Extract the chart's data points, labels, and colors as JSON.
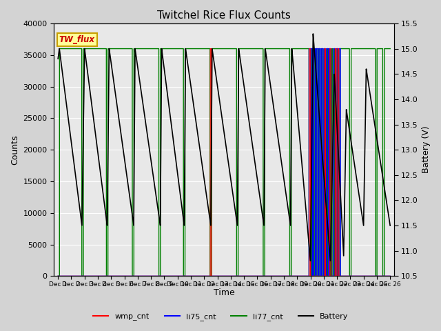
{
  "title": "Twitchel Rice Flux Counts",
  "xlabel": "Time",
  "ylabel_left": "Counts",
  "ylabel_right": "Battery (V)",
  "ylim_left": [
    0,
    40000
  ],
  "ylim_right": [
    10.5,
    15.5
  ],
  "yticks_left": [
    0,
    5000,
    10000,
    15000,
    20000,
    25000,
    30000,
    35000,
    40000
  ],
  "yticks_right": [
    10.5,
    11.0,
    11.5,
    12.0,
    12.5,
    13.0,
    13.5,
    14.0,
    14.5,
    15.0,
    15.5
  ],
  "background_color": "#d3d3d3",
  "axes_bg_color": "#e8e8e8",
  "legend_box_color": "#ffff99",
  "legend_box_edge": "#c8a000",
  "annotation_text": "TW_flux",
  "annotation_color": "#cc0000",
  "battery_cycles": [
    {
      "peak_day": 0.1,
      "peak_v": 15.0,
      "trough_day": 1.8,
      "trough_v": 11.5
    },
    {
      "peak_day": 2.0,
      "peak_v": 15.0,
      "trough_day": 3.7,
      "trough_v": 11.5
    },
    {
      "peak_day": 3.85,
      "peak_v": 15.0,
      "trough_day": 5.7,
      "trough_v": 11.5
    },
    {
      "peak_day": 5.8,
      "peak_v": 15.0,
      "trough_day": 7.7,
      "trough_v": 11.5
    },
    {
      "peak_day": 7.8,
      "peak_v": 15.0,
      "trough_day": 9.5,
      "trough_v": 11.5
    },
    {
      "peak_day": 9.6,
      "peak_v": 15.0,
      "trough_day": 11.5,
      "trough_v": 11.5
    },
    {
      "peak_day": 11.6,
      "peak_v": 15.0,
      "trough_day": 13.5,
      "trough_v": 11.5
    },
    {
      "peak_day": 13.6,
      "peak_v": 15.0,
      "trough_day": 15.5,
      "trough_v": 11.5
    },
    {
      "peak_day": 15.6,
      "peak_v": 15.0,
      "trough_day": 17.5,
      "trough_v": 11.5
    },
    {
      "peak_day": 17.6,
      "peak_v": 15.0,
      "trough_day": 19.0,
      "trough_v": 10.8
    },
    {
      "peak_day": 19.2,
      "peak_v": 15.3,
      "trough_day": 20.5,
      "trough_v": 10.8
    },
    {
      "peak_day": 20.8,
      "peak_v": 14.5,
      "trough_day": 21.5,
      "trough_v": 10.9
    },
    {
      "peak_day": 21.7,
      "peak_v": 13.8,
      "trough_day": 23.0,
      "trough_v": 11.5
    },
    {
      "peak_day": 23.2,
      "peak_v": 14.6,
      "trough_day": 25.0,
      "trough_v": 11.5
    }
  ],
  "li77_drop_days": [
    0.05,
    1.85,
    3.7,
    5.65,
    7.65,
    9.5,
    11.5,
    13.5,
    15.5,
    17.5,
    18.95,
    19.15,
    19.35,
    19.55,
    19.75,
    19.95,
    20.15,
    20.35,
    20.55,
    20.75,
    20.95,
    21.15,
    22.0,
    23.95,
    24.5
  ],
  "li75_spike_days": [
    18.95,
    19.1,
    19.3,
    19.5,
    19.7,
    19.9,
    20.1,
    20.3,
    20.5,
    20.8,
    21.0,
    21.2
  ],
  "wmp_spike_days": [
    11.5,
    18.95,
    20.1,
    20.5,
    20.9,
    21.1
  ]
}
